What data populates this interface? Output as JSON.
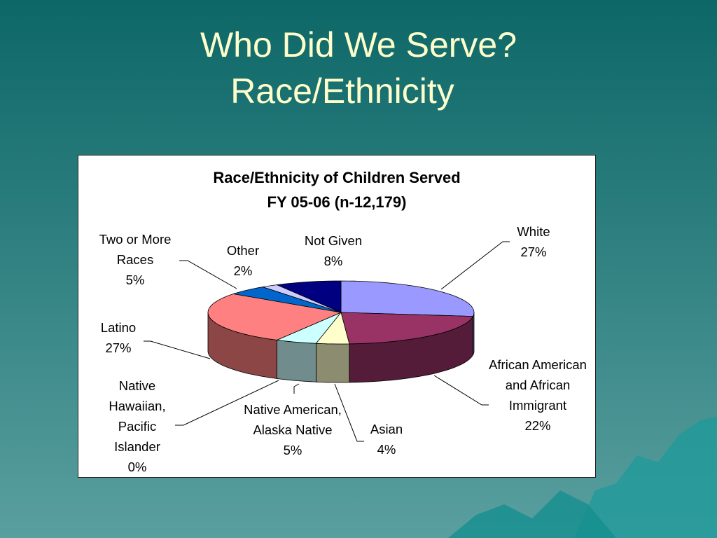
{
  "slide_title": [
    "Who Did We Serve?",
    "Race/Ethnicity"
  ],
  "chart_data": {
    "type": "pie3d",
    "title": "Race/Ethnicity of Children Served",
    "subtitle": "FY 05-06 (n-12,179)",
    "categories": [
      "White",
      "African American and African Immigrant",
      "Asian",
      "Native American, Alaska Native",
      "Native Hawaiian, Pacific Islander",
      "Latino",
      "Two or More Races",
      "Other",
      "Not Given"
    ],
    "values": [
      27,
      22,
      4,
      5,
      0,
      27,
      5,
      2,
      8
    ],
    "value_labels": [
      "27%",
      "22%",
      "4%",
      "5%",
      "0%",
      "27%",
      "5%",
      "2%",
      "8%"
    ],
    "colors": [
      "#9999ff",
      "#993366",
      "#ffffcc",
      "#ccffff",
      "#660066",
      "#ff8080",
      "#0066cc",
      "#ccccff",
      "#000080"
    ]
  }
}
